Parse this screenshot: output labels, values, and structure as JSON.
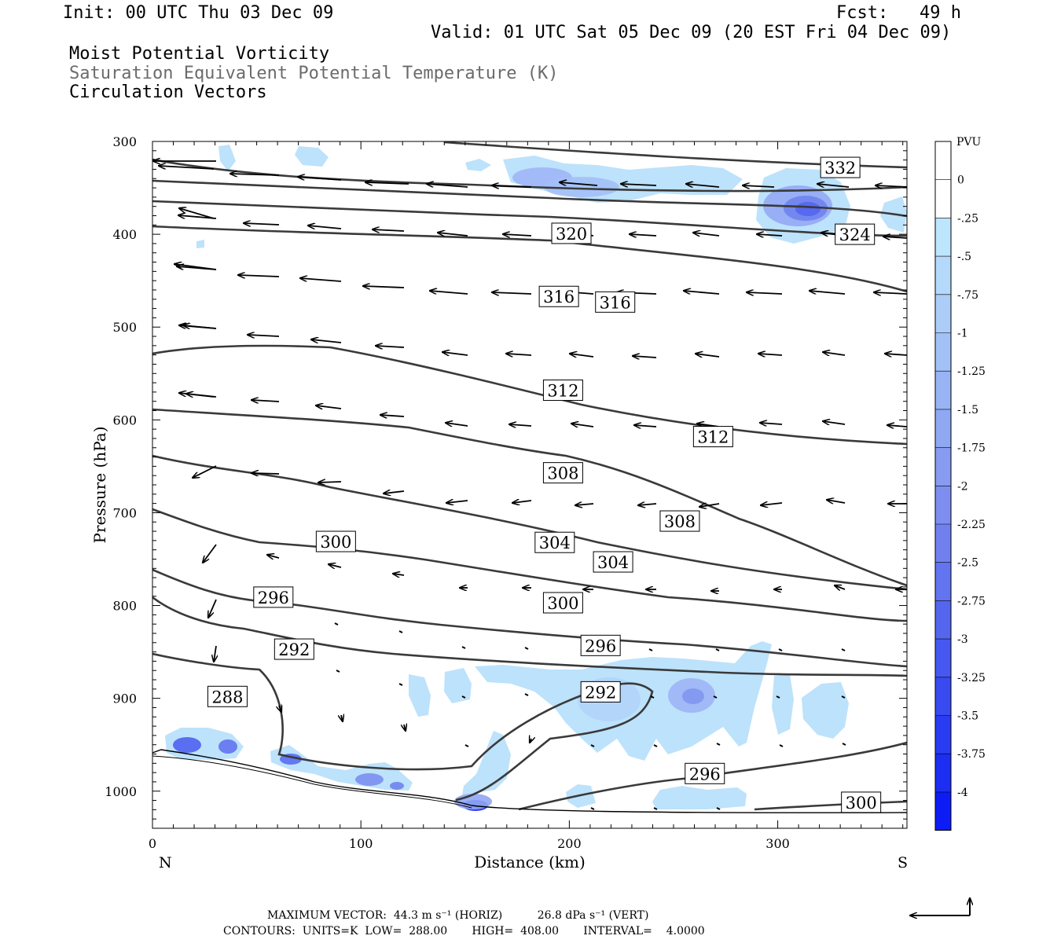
{
  "header": {
    "init": "Init: 00 UTC Thu 03 Dec 09",
    "fcst": "Fcst:   49 h",
    "valid": "Valid: 01 UTC Sat 05 Dec 09 (20 EST Fri 04 Dec 09)"
  },
  "fields": {
    "line1": "Moist Potential Vorticity",
    "line2": "Saturation Equivalent Potential Temperature (K)",
    "line3": "Circulation Vectors"
  },
  "footer": {
    "max_vector": "MAXIMUM VECTOR:  44.3 m s⁻¹ (HORIZ)          26.8 dPa s⁻¹ (VERT)",
    "contours": "CONTOURS:  UNITS=K  LOW=  288.00       HIGH=  408.00       INTERVAL=    4.0000"
  },
  "chart_data": {
    "type": "contour",
    "xlabel": "Distance (km)",
    "ylabel": "Pressure (hPa)",
    "x_end_left": "N",
    "x_end_right": "S",
    "xlim": [
      0,
      362
    ],
    "ylim": [
      300,
      1040
    ],
    "x_ticks": [
      0,
      100,
      200,
      300
    ],
    "y_ticks": [
      300,
      400,
      500,
      600,
      700,
      800,
      900,
      1000
    ],
    "colorbar": {
      "unit": "PVU",
      "levels": [
        "0",
        "-.25",
        "-.5",
        "-.75",
        "-1",
        "-1.25",
        "-1.5",
        "-1.75",
        "-2",
        "-2.25",
        "-2.5",
        "-2.75",
        "-3",
        "-3.25",
        "-3.5",
        "-3.75",
        "-4"
      ],
      "colors": [
        "#ffffff",
        "#ffffff",
        "#bde5fb",
        "#b4d9fa",
        "#abcdf8",
        "#a2c1f6",
        "#99b4f4",
        "#90a8f2",
        "#879bf0",
        "#7e8ef0",
        "#7081ef",
        "#6274ef",
        "#5466ee",
        "#4658ef",
        "#384af0",
        "#2a3cf1",
        "#1c2ef2",
        "#0d1cf5"
      ]
    },
    "contour_labels": [
      {
        "text": "332",
        "x": 330,
        "p": 328
      },
      {
        "text": "324",
        "x": 337,
        "p": 400
      },
      {
        "text": "320",
        "x": 201,
        "p": 399
      },
      {
        "text": "316",
        "x": 195,
        "p": 467
      },
      {
        "text": "316",
        "x": 222,
        "p": 473
      },
      {
        "text": "312",
        "x": 197,
        "p": 568
      },
      {
        "text": "312",
        "x": 269,
        "p": 618
      },
      {
        "text": "308",
        "x": 197,
        "p": 657
      },
      {
        "text": "308",
        "x": 253,
        "p": 709
      },
      {
        "text": "304",
        "x": 193,
        "p": 732
      },
      {
        "text": "304",
        "x": 221,
        "p": 753
      },
      {
        "text": "300",
        "x": 88,
        "p": 731
      },
      {
        "text": "300",
        "x": 197,
        "p": 797
      },
      {
        "text": "300",
        "x": 340,
        "p": 1012
      },
      {
        "text": "296",
        "x": 58,
        "p": 791
      },
      {
        "text": "296",
        "x": 215,
        "p": 843
      },
      {
        "text": "296",
        "x": 265,
        "p": 981
      },
      {
        "text": "292",
        "x": 68,
        "p": 847
      },
      {
        "text": "292",
        "x": 215,
        "p": 893
      },
      {
        "text": "288",
        "x": 36,
        "p": 898
      }
    ]
  },
  "colors": {
    "contour": "#3a3a3a",
    "fill_light": "#b9e0fb",
    "fill_dark": "#1a22f0"
  }
}
